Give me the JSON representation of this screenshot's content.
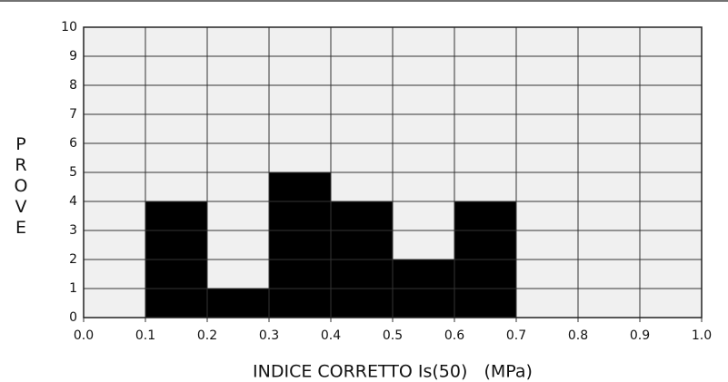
{
  "chart_data": {
    "type": "histogram",
    "xlabel": "INDICE CORRETTO Is(50)   (MPa)",
    "ylabel": "PROVE",
    "bins": [
      {
        "value": 0,
        "label": "0.0"
      },
      0.1,
      0.2,
      0.3,
      0.4,
      0.5,
      0.6,
      0.7,
      0.8,
      0.9,
      {
        "value": 1,
        "label": "1.0"
      }
    ],
    "counts": [
      0,
      4,
      1,
      5,
      4,
      2,
      4,
      0,
      0,
      0
    ],
    "color": "#000000",
    "xlim": [
      0,
      1
    ],
    "xticks": [
      {
        "value": 0,
        "label": "0.0"
      },
      0.1,
      0.2,
      0.3,
      0.4,
      0.5,
      0.6,
      0.7,
      0.8,
      0.9,
      {
        "value": 1,
        "label": "1.0"
      }
    ],
    "ylim": [
      0,
      10
    ],
    "yticks": [
      0,
      1,
      2,
      3,
      4,
      5,
      6,
      7,
      8,
      9,
      10
    ],
    "grid": true
  }
}
